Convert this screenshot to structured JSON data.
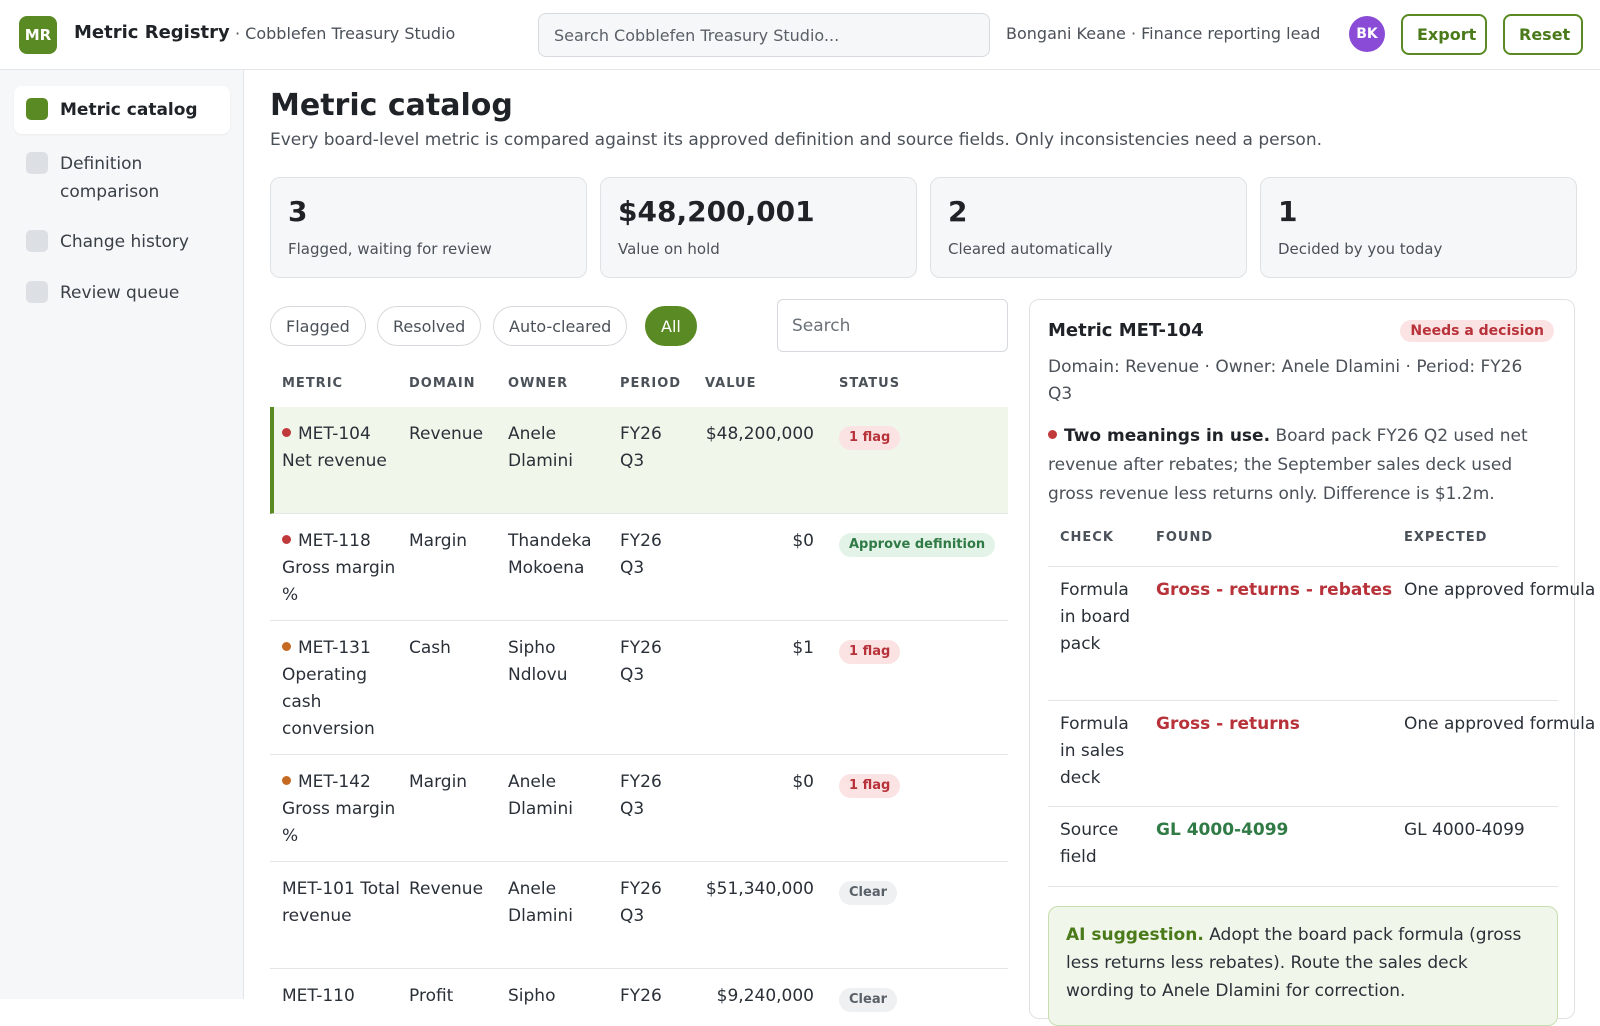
{
  "app": {
    "logo": "MR",
    "name": "Metric Registry",
    "workspace": "· Cobblefen Treasury Studio",
    "search_placeholder": "Search Cobblefen Treasury Studio...",
    "user_label": "Bongani Keane · Finance reporting lead",
    "user_initials": "BK",
    "export_label": "Export",
    "reset_label": "Reset"
  },
  "sidebar": {
    "items": [
      {
        "label": "Metric catalog",
        "active": true
      },
      {
        "label": "Definition comparison",
        "active": false
      },
      {
        "label": "Change history",
        "active": false
      },
      {
        "label": "Review queue",
        "active": false
      }
    ]
  },
  "page": {
    "title": "Metric catalog",
    "subtitle": "Every board-level metric is compared against its approved definition and source fields. Only inconsistencies need a person."
  },
  "kpis": [
    {
      "value": "3",
      "label": "Flagged, waiting for review"
    },
    {
      "value": "$48,200,001",
      "label": "Value on hold"
    },
    {
      "value": "2",
      "label": "Cleared automatically"
    },
    {
      "value": "1",
      "label": "Decided by you today"
    }
  ],
  "filters": {
    "chips": [
      "Flagged",
      "Resolved",
      "Auto-cleared",
      "All"
    ],
    "active": "All",
    "search_placeholder": "Search"
  },
  "table": {
    "headers": [
      "METRIC",
      "DOMAIN",
      "OWNER",
      "PERIOD",
      "VALUE",
      "STATUS"
    ],
    "rows": [
      {
        "id": "MET-104",
        "name": "Net revenue",
        "dot": "red",
        "domain": "Revenue",
        "owner": "Anele Dlamini",
        "period": "FY26 Q3",
        "value": "$48,200,000",
        "status": "1 flag",
        "status_type": "flag",
        "selected": true
      },
      {
        "id": "MET-118",
        "name": "Gross margin %",
        "dot": "red",
        "domain": "Margin",
        "owner": "Thandeka Mokoena",
        "period": "FY26 Q3",
        "value": "$0",
        "status": "Approve definition",
        "status_type": "approve",
        "selected": false
      },
      {
        "id": "MET-131",
        "name": "Operating cash conversion",
        "dot": "orange",
        "domain": "Cash",
        "owner": "Sipho Ndlovu",
        "period": "FY26 Q3",
        "value": "$1",
        "status": "1 flag",
        "status_type": "flag",
        "selected": false
      },
      {
        "id": "MET-142",
        "name": "Gross margin %",
        "dot": "orange",
        "domain": "Margin",
        "owner": "Anele Dlamini",
        "period": "FY26 Q3",
        "value": "$0",
        "status": "1 flag",
        "status_type": "flag",
        "selected": false
      },
      {
        "id": "MET-101",
        "name": "Total revenue",
        "dot": "",
        "domain": "Revenue",
        "owner": "Anele Dlamini",
        "period": "FY26 Q3",
        "value": "$51,340,000",
        "status": "Clear",
        "status_type": "clear",
        "selected": false
      },
      {
        "id": "MET-110",
        "name": "",
        "dot": "",
        "domain": "Profit",
        "owner": "Sipho",
        "period": "FY26",
        "value": "$9,240,000",
        "status": "Clear",
        "status_type": "clear",
        "selected": false
      }
    ]
  },
  "detail": {
    "title": "Metric MET-104",
    "badge": "Needs a decision",
    "meta": "Domain: Revenue · Owner: Anele Dlamini · Period: FY26 Q3",
    "issue_title": "Two meanings in use.",
    "issue_text": " Board pack FY26 Q2 used net revenue after rebates; the September sales deck used gross revenue less returns only. Difference is $1.2m.",
    "headers": [
      "CHECK",
      "FOUND",
      "EXPECTED"
    ],
    "rows": [
      {
        "check": "Formula in board pack",
        "found": "Gross - returns - rebates",
        "found_status": "bad",
        "expected": "One approved formula"
      },
      {
        "check": "Formula in sales deck",
        "found": "Gross - returns",
        "found_status": "bad",
        "expected": "One approved formula"
      },
      {
        "check": "Source field",
        "found": "GL 4000-4099",
        "found_status": "good",
        "expected": "GL 4000-4099"
      }
    ],
    "suggestion_label": "AI suggestion.",
    "suggestion_text": " Adopt the board pack formula (gross less returns less rebates). Route the sales deck wording to Anele Dlamini for correction."
  },
  "colors": {
    "accent": "#5a8a23",
    "flag_text": "#b8323a",
    "ok_text": "#2f7a45",
    "avatar": "#8a4bd6"
  }
}
